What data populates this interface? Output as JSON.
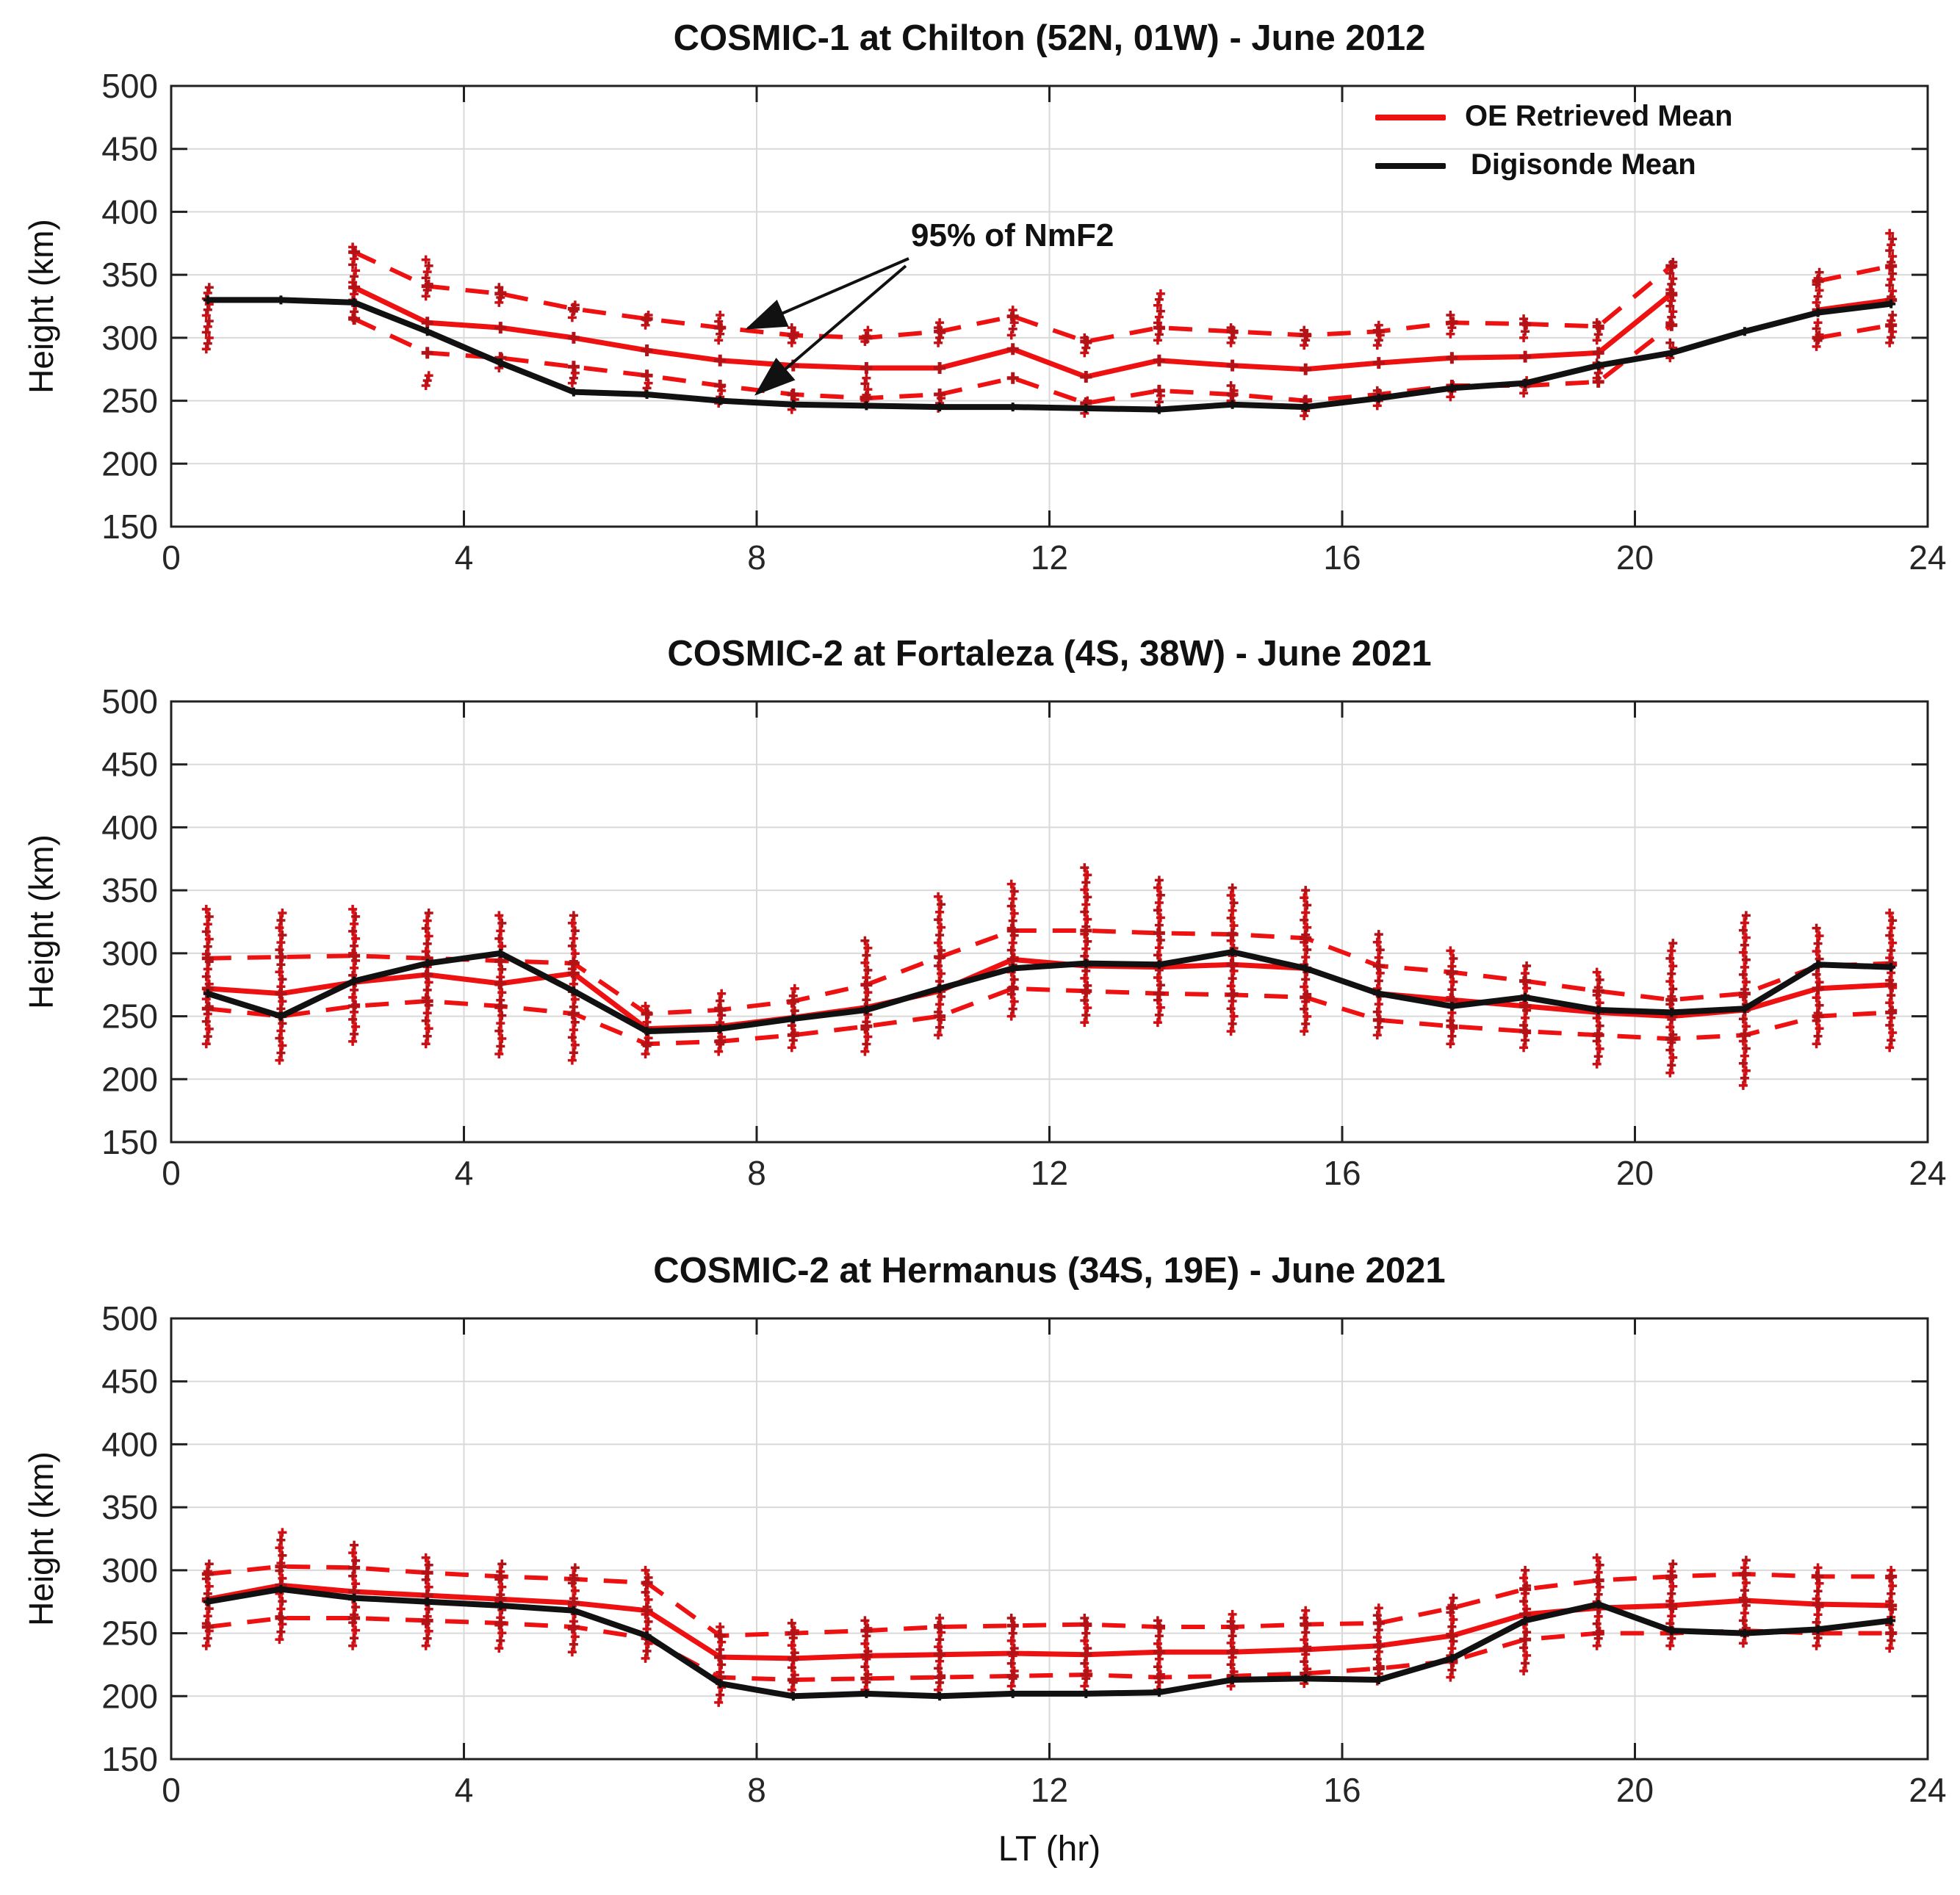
{
  "figure": {
    "xlabel": "LT (hr)"
  },
  "colors": {
    "red": "#ee1111",
    "dark_red": "#b31217",
    "black": "#111111",
    "grid": "#d9d9d9",
    "axis": "#202020",
    "text": "#262626"
  },
  "legend": {
    "items": [
      {
        "label": "OE Retrieved Mean",
        "color": "red"
      },
      {
        "label": "Digisonde Mean",
        "color": "black"
      }
    ]
  },
  "annotation": {
    "text": "95% of NmF2"
  },
  "axes": {
    "x_ticks": [
      0,
      4,
      8,
      12,
      16,
      20,
      24
    ],
    "y_ticks": [
      500,
      450,
      400,
      350,
      300,
      250,
      200,
      150
    ],
    "xlim": [
      0,
      24
    ],
    "ylim": [
      150,
      500
    ]
  },
  "chart_data": [
    {
      "id": "chilton",
      "type": "line",
      "title": "COSMIC-1 at Chilton (52N, 01W) - June 2012",
      "ylabel": "Height (km)",
      "x": [
        0.5,
        1.5,
        2.5,
        3.5,
        4.5,
        5.5,
        6.5,
        7.5,
        8.5,
        9.5,
        10.5,
        11.5,
        12.5,
        13.5,
        14.5,
        15.5,
        16.5,
        17.5,
        18.5,
        19.5,
        20.5,
        21.5,
        22.5,
        23.5
      ],
      "series": [
        {
          "name": "Digisonde Mean",
          "color": "black",
          "style": "solid",
          "values": [
            330,
            330,
            328,
            305,
            280,
            257,
            255,
            250,
            247,
            246,
            245,
            245,
            244,
            243,
            247,
            245,
            252,
            260,
            264,
            278,
            288,
            305,
            320,
            327
          ]
        },
        {
          "name": "OE Retrieved Mean",
          "color": "red",
          "style": "solid",
          "values": [
            null,
            null,
            340,
            312,
            308,
            300,
            290,
            282,
            278,
            276,
            276,
            291,
            269,
            282,
            278,
            275,
            280,
            284,
            285,
            288,
            335,
            null,
            322,
            330
          ]
        },
        {
          "name": "95% of NmF2 upper",
          "color": "red",
          "style": "dashed",
          "values": [
            null,
            null,
            368,
            341,
            335,
            323,
            315,
            308,
            302,
            300,
            305,
            317,
            297,
            308,
            305,
            302,
            305,
            312,
            311,
            309,
            357,
            null,
            345,
            357
          ]
        },
        {
          "name": "95% of NmF2 lower",
          "color": "red",
          "style": "dashed",
          "values": [
            null,
            null,
            315,
            288,
            284,
            277,
            270,
            262,
            255,
            252,
            255,
            268,
            248,
            258,
            255,
            250,
            255,
            262,
            262,
            265,
            310,
            null,
            300,
            310
          ]
        }
      ],
      "scatter": {
        "name": "OE retrieved heights",
        "line": false,
        "step": 4.5,
        "clusters": [
          [
            [
              291,
              340
            ]
          ],
          [],
          [
            [
              316,
              372
            ]
          ],
          [
            [
              262,
              270
            ],
            [
              333,
              362
            ]
          ],
          [
            [
              276,
              284
            ],
            [
              328,
              340
            ]
          ],
          [
            [
              264,
              272
            ],
            [
              316,
              326
            ]
          ],
          [
            [
              256,
              264
            ],
            [
              310,
              318
            ]
          ],
          [
            [
              248,
              258
            ],
            [
              298,
              318
            ]
          ],
          [
            [
              243,
              255
            ],
            [
              296,
              308
            ]
          ],
          [
            [
              250,
              268
            ],
            [
              297,
              306
            ]
          ],
          [
            [
              244,
              252
            ],
            [
              296,
              312
            ]
          ],
          [
            [
              302,
              322
            ]
          ],
          [
            [
              240,
              250
            ],
            [
              288,
              300
            ]
          ],
          [
            [
              244,
              254
            ],
            [
              298,
              335
            ]
          ],
          [
            [
              250,
              262
            ],
            [
              296,
              308
            ]
          ],
          [
            [
              238,
              250
            ],
            [
              294,
              306
            ]
          ],
          [
            [
              246,
              258
            ],
            [
              294,
              310
            ]
          ],
          [
            [
              253,
              262
            ],
            [
              303,
              318
            ]
          ],
          [
            [
              256,
              266
            ],
            [
              300,
              315
            ]
          ],
          [
            [
              268,
              280
            ],
            [
              298,
              312
            ]
          ],
          [
            [
              284,
              296
            ],
            [
              312,
              360
            ]
          ],
          [],
          [
            [
              293,
              312
            ],
            [
              328,
              352
            ]
          ],
          [
            [
              296,
              318
            ],
            [
              328,
              383
            ]
          ]
        ]
      }
    },
    {
      "id": "fortaleza",
      "type": "line",
      "title": "COSMIC-2 at Fortaleza (4S, 38W) - June 2021",
      "ylabel": "Height (km)",
      "x": [
        0.5,
        1.5,
        2.5,
        3.5,
        4.5,
        5.5,
        6.5,
        7.5,
        8.5,
        9.5,
        10.5,
        11.5,
        12.5,
        13.5,
        14.5,
        15.5,
        16.5,
        17.5,
        18.5,
        19.5,
        20.5,
        21.5,
        22.5,
        23.5
      ],
      "series": [
        {
          "name": "Digisonde Mean",
          "color": "black",
          "style": "solid",
          "values": [
            268,
            250,
            278,
            292,
            300,
            270,
            238,
            240,
            248,
            255,
            272,
            288,
            292,
            291,
            301,
            288,
            268,
            258,
            265,
            255,
            253,
            256,
            291,
            289
          ]
        },
        {
          "name": "OE Retrieved Mean",
          "color": "red",
          "style": "solid",
          "values": [
            272,
            268,
            277,
            283,
            276,
            284,
            240,
            242,
            249,
            257,
            270,
            295,
            290,
            289,
            291,
            288,
            268,
            263,
            258,
            253,
            250,
            255,
            272,
            275
          ]
        },
        {
          "name": "95% of NmF2 upper",
          "color": "red",
          "style": "dashed",
          "values": [
            296,
            297,
            298,
            296,
            294,
            292,
            252,
            255,
            262,
            275,
            297,
            318,
            318,
            316,
            315,
            312,
            290,
            285,
            278,
            270,
            263,
            268,
            290,
            292
          ]
        },
        {
          "name": "95% of NmF2 lower",
          "color": "red",
          "style": "dashed",
          "values": [
            256,
            250,
            258,
            262,
            258,
            252,
            228,
            230,
            235,
            242,
            250,
            272,
            270,
            268,
            267,
            265,
            247,
            242,
            238,
            235,
            232,
            235,
            250,
            253
          ]
        }
      ],
      "scatter": {
        "name": "OE retrieved heights",
        "line": true,
        "step": 6,
        "clusters": [
          [
            [
              228,
              335
            ]
          ],
          [
            [
              215,
              332
            ]
          ],
          [
            [
              230,
              335
            ]
          ],
          [
            [
              228,
              332
            ]
          ],
          [
            [
              220,
              330
            ]
          ],
          [
            [
              215,
              330
            ]
          ],
          [
            [
              220,
              258
            ]
          ],
          [
            [
              222,
              268
            ]
          ],
          [
            [
              225,
              272
            ]
          ],
          [
            [
              222,
              310
            ]
          ],
          [
            [
              235,
              345
            ]
          ],
          [
            [
              250,
              355
            ]
          ],
          [
            [
              245,
              368
            ]
          ],
          [
            [
              245,
              358
            ]
          ],
          [
            [
              238,
              352
            ]
          ],
          [
            [
              238,
              350
            ]
          ],
          [
            [
              235,
              315
            ]
          ],
          [
            [
              228,
              302
            ]
          ],
          [
            [
              225,
              290
            ]
          ],
          [
            [
              212,
              285
            ]
          ],
          [
            [
              205,
              308
            ]
          ],
          [
            [
              195,
              330
            ]
          ],
          [
            [
              228,
              320
            ]
          ],
          [
            [
              225,
              332
            ]
          ]
        ]
      }
    },
    {
      "id": "hermanus",
      "type": "line",
      "title": "COSMIC-2 at Hermanus (34S, 19E) - June 2021",
      "ylabel": "Height (km)",
      "x": [
        0.5,
        1.5,
        2.5,
        3.5,
        4.5,
        5.5,
        6.5,
        7.5,
        8.5,
        9.5,
        10.5,
        11.5,
        12.5,
        13.5,
        14.5,
        15.5,
        16.5,
        17.5,
        18.5,
        19.5,
        20.5,
        21.5,
        22.5,
        23.5
      ],
      "series": [
        {
          "name": "Digisonde Mean",
          "color": "black",
          "style": "solid",
          "values": [
            275,
            285,
            278,
            275,
            272,
            268,
            248,
            210,
            200,
            202,
            200,
            202,
            202,
            203,
            213,
            214,
            213,
            230,
            260,
            273,
            252,
            250,
            253,
            260
          ]
        },
        {
          "name": "OE Retrieved Mean",
          "color": "red",
          "style": "solid",
          "values": [
            277,
            288,
            283,
            280,
            277,
            274,
            268,
            231,
            230,
            232,
            233,
            234,
            233,
            235,
            235,
            237,
            240,
            248,
            265,
            270,
            272,
            276,
            273,
            272
          ]
        },
        {
          "name": "95% of NmF2 upper",
          "color": "red",
          "style": "dashed",
          "values": [
            297,
            303,
            302,
            298,
            295,
            293,
            290,
            248,
            250,
            252,
            255,
            256,
            257,
            255,
            255,
            257,
            258,
            270,
            285,
            292,
            295,
            297,
            295,
            295
          ]
        },
        {
          "name": "95% of NmF2 lower",
          "color": "red",
          "style": "dashed",
          "values": [
            255,
            262,
            262,
            260,
            258,
            255,
            246,
            215,
            213,
            214,
            215,
            216,
            217,
            215,
            216,
            218,
            222,
            228,
            245,
            250,
            250,
            252,
            250,
            250
          ]
        }
      ],
      "scatter": {
        "name": "OE retrieved heights",
        "line": true,
        "step": 6,
        "clusters": [
          [
            [
              240,
              305
            ]
          ],
          [
            [
              245,
              330
            ]
          ],
          [
            [
              240,
              320
            ]
          ],
          [
            [
              240,
              310
            ]
          ],
          [
            [
              238,
              305
            ]
          ],
          [
            [
              235,
              302
            ]
          ],
          [
            [
              230,
              300
            ]
          ],
          [
            [
              195,
              255
            ]
          ],
          [
            [
              205,
              258
            ]
          ],
          [
            [
              205,
              260
            ]
          ],
          [
            [
              205,
              262
            ]
          ],
          [
            [
              208,
              262
            ]
          ],
          [
            [
              208,
              262
            ]
          ],
          [
            [
              205,
              260
            ]
          ],
          [
            [
              208,
              265
            ]
          ],
          [
            [
              210,
              268
            ]
          ],
          [
            [
              212,
              270
            ]
          ],
          [
            [
              215,
              278
            ]
          ],
          [
            [
              220,
              300
            ]
          ],
          [
            [
              240,
              310
            ]
          ],
          [
            [
              240,
              305
            ]
          ],
          [
            [
              242,
              308
            ]
          ],
          [
            [
              240,
              302
            ]
          ],
          [
            [
              238,
              300
            ]
          ]
        ]
      }
    }
  ]
}
